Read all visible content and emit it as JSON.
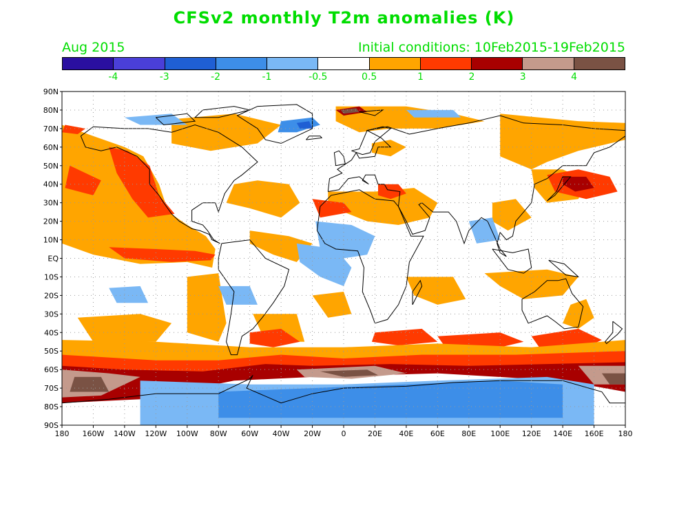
{
  "title": "CFSv2 monthly T2m anomalies (K)",
  "valid_month": "Aug 2015",
  "initial_conditions": "Initial conditions: 10Feb2015-19Feb2015",
  "colorbar": {
    "colors": [
      "#2a0fa0",
      "#4a3fd8",
      "#1f5fd4",
      "#3d8ee8",
      "#7ab8f5",
      "#ffffff",
      "#ffa500",
      "#ff3a00",
      "#a80000",
      "#c49a8c",
      "#7a5244"
    ],
    "labels": [
      "-4",
      "-3",
      "-2",
      "-1",
      "-0.5",
      "0.5",
      "1",
      "2",
      "3",
      "4"
    ]
  },
  "map": {
    "projection": "cylindrical equidistant",
    "lat_labels": [
      "90N",
      "80N",
      "70N",
      "60N",
      "50N",
      "40N",
      "30N",
      "20N",
      "10N",
      "EQ",
      "10S",
      "20S",
      "30S",
      "40S",
      "50S",
      "60S",
      "70S",
      "80S",
      "90S"
    ],
    "lon_labels": [
      "180",
      "160W",
      "140W",
      "120W",
      "100W",
      "80W",
      "60W",
      "40W",
      "20W",
      "0",
      "20E",
      "40E",
      "60E",
      "80E",
      "100E",
      "120E",
      "140E",
      "160E",
      "180"
    ],
    "grid": "dotted",
    "anomaly_regions": [
      {
        "region": "NE Pacific / western N. America coast",
        "class": "1"
      },
      {
        "region": "California current",
        "class": "2"
      },
      {
        "region": "Eastern equatorial Pacific (El Nino)",
        "class": "2"
      },
      {
        "region": "Arctic north of Scandinavia",
        "class": "4"
      },
      {
        "region": "Greenland east coast",
        "class": "-2"
      },
      {
        "region": "Tropical Atlantic / West Africa",
        "class": "-0.5"
      },
      {
        "region": "Eastern Mediterranean",
        "class": "2"
      },
      {
        "region": "NW Pacific off Japan",
        "class": "2"
      },
      {
        "region": "Southern Ocean 50S-70S",
        "class": "3"
      },
      {
        "region": "Antarctica",
        "class": "-1"
      }
    ]
  }
}
